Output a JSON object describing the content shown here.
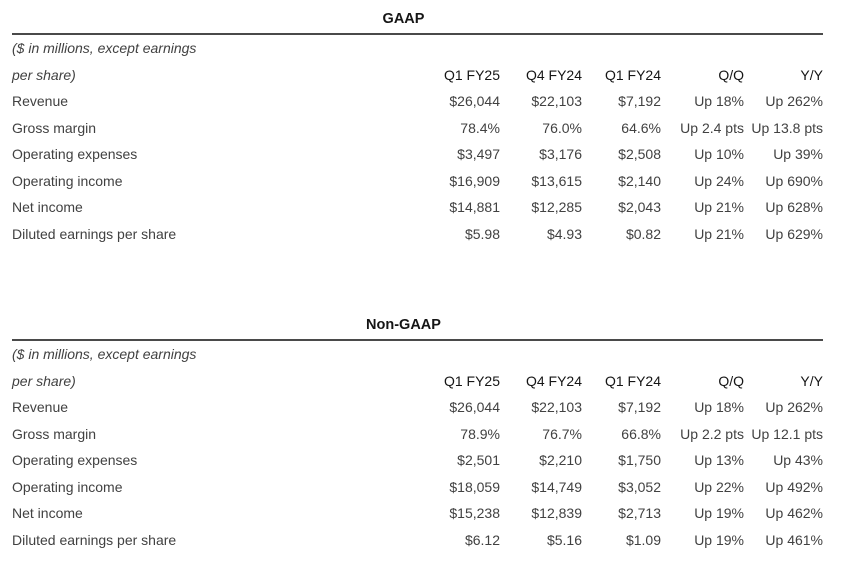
{
  "page": {
    "background_color": "#ffffff",
    "body_text_color": "#414141",
    "heading_text_color": "#151515",
    "rule_color": "#4a4a4a"
  },
  "tables": [
    {
      "title": "GAAP",
      "note_line1": "($ in millions, except earnings",
      "note_line2": "per share)",
      "columns": [
        "Q1 FY25",
        "Q4 FY24",
        "Q1 FY24",
        "Q/Q",
        "Y/Y"
      ],
      "rows": [
        {
          "label": "Revenue",
          "values": [
            "$26,044",
            "$22,103",
            "$7,192",
            "Up 18%",
            "Up 262%"
          ]
        },
        {
          "label": "Gross margin",
          "values": [
            "78.4%",
            "76.0%",
            "64.6%",
            "Up 2.4 pts",
            "Up 13.8 pts"
          ]
        },
        {
          "label": "Operating expenses",
          "values": [
            "$3,497",
            "$3,176",
            "$2,508",
            "Up 10%",
            "Up 39%"
          ]
        },
        {
          "label": "Operating income",
          "values": [
            "$16,909",
            "$13,615",
            "$2,140",
            "Up 24%",
            "Up 690%"
          ]
        },
        {
          "label": "Net income",
          "values": [
            "$14,881",
            "$12,285",
            "$2,043",
            "Up 21%",
            "Up 628%"
          ]
        },
        {
          "label": "Diluted earnings per share",
          "values": [
            "$5.98",
            "$4.93",
            "$0.82",
            "Up 21%",
            "Up 629%"
          ]
        }
      ]
    },
    {
      "title": "Non-GAAP",
      "note_line1": "($ in millions, except earnings",
      "note_line2": "per share)",
      "columns": [
        "Q1 FY25",
        "Q4 FY24",
        "Q1 FY24",
        "Q/Q",
        "Y/Y"
      ],
      "rows": [
        {
          "label": "Revenue",
          "values": [
            "$26,044",
            "$22,103",
            "$7,192",
            "Up 18%",
            "Up 262%"
          ]
        },
        {
          "label": "Gross margin",
          "values": [
            "78.9%",
            "76.7%",
            "66.8%",
            "Up 2.2 pts",
            "Up 12.1 pts"
          ]
        },
        {
          "label": "Operating expenses",
          "values": [
            "$2,501",
            "$2,210",
            "$1,750",
            "Up 13%",
            "Up 43%"
          ]
        },
        {
          "label": "Operating income",
          "values": [
            "$18,059",
            "$14,749",
            "$3,052",
            "Up 22%",
            "Up 492%"
          ]
        },
        {
          "label": "Net income",
          "values": [
            "$15,238",
            "$12,839",
            "$2,713",
            "Up 19%",
            "Up 462%"
          ]
        },
        {
          "label": "Diluted earnings per share",
          "values": [
            "$6.12",
            "$5.16",
            "$1.09",
            "Up 19%",
            "Up 461%"
          ]
        }
      ]
    }
  ]
}
